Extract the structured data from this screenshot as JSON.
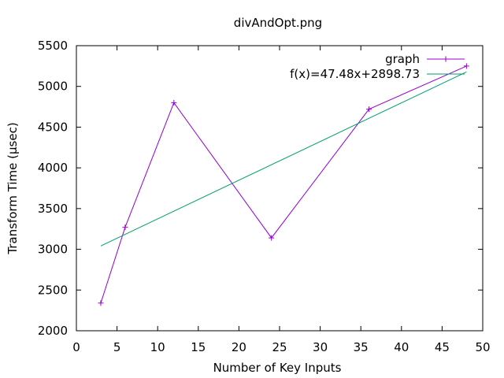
{
  "chart_data": {
    "type": "line",
    "title": "divAndOpt.png",
    "xlabel": "Number of Key Inputs",
    "ylabel": "Transform Time (µsec)",
    "xlim": [
      0,
      50
    ],
    "ylim": [
      2000,
      5500
    ],
    "xticks": [
      0,
      5,
      10,
      15,
      20,
      25,
      30,
      35,
      40,
      45,
      50
    ],
    "yticks": [
      2000,
      2500,
      3000,
      3500,
      4000,
      4500,
      5000,
      5500
    ],
    "grid": false,
    "legend_position": "top-right",
    "series": [
      {
        "name": "graph",
        "color": "#9400d3",
        "marker": "plus",
        "x": [
          3,
          6,
          12,
          24,
          36,
          48
        ],
        "y": [
          2340,
          3270,
          4800,
          3140,
          4720,
          5250
        ]
      },
      {
        "name": "f(x)=47.48x+2898.73",
        "color": "#009e73",
        "marker": "none",
        "x": [
          3,
          48
        ],
        "y": [
          3041.17,
          5177.77
        ]
      }
    ]
  }
}
